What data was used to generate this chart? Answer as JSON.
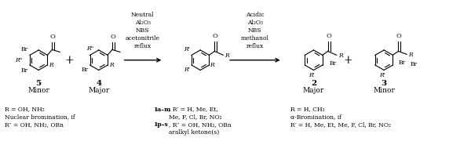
{
  "bg_color": "#ffffff",
  "fig_width": 6.0,
  "fig_height": 1.94,
  "dpi": 100,
  "arrow_left_label": "Neutral\nAl₂O₃\nNBS\nacetonitrile\nreflux",
  "arrow_right_label": "Acidic\nAl₂O₃\nNBS\nmethanol\nreflux",
  "footnote_left_line1": "R = OH, NH₂",
  "footnote_left_line2": "Nuclear bromination, if",
  "footnote_left_line3": "R″ = OH, NH₂, OBn",
  "footnote_center_line1": "1a–m, R′ = H, Me, Et,",
  "footnote_center_line2": "    Me, F, Cl, Br, NO₂",
  "footnote_center_line3": "1p–s, R″ = OH, NH₂, OBn",
  "footnote_center_line4": "    aralkyl ketone(s)",
  "footnote_right_line1": "R = H, CH₃",
  "footnote_right_line2": "α-Bromination, if",
  "footnote_right_line3": "R′ = H, Me, Et, Me, F, Cl, Br, NO₂",
  "font_size_main": 7,
  "font_size_small": 5.5,
  "font_size_label": 7.5
}
